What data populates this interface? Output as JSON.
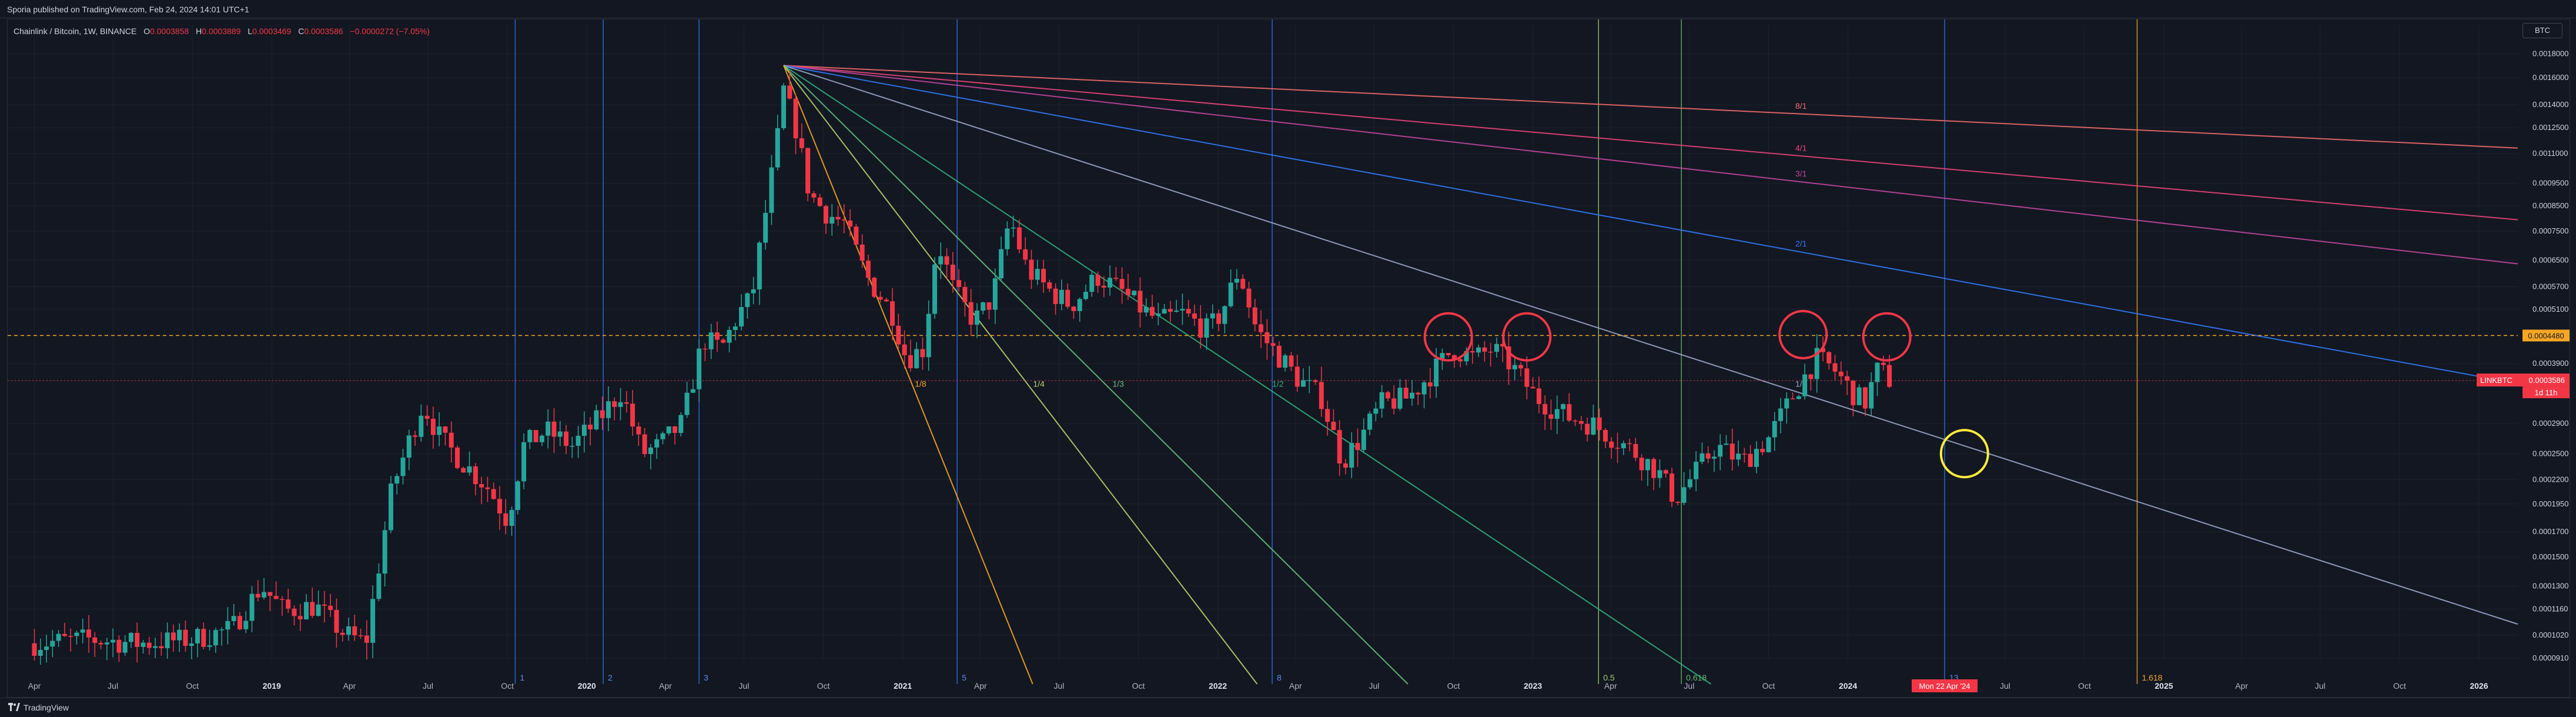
{
  "header": {
    "published": "Sporia published on TradingView.com, Feb 24, 2024 14:01 UTC+1"
  },
  "legend": {
    "symbol": "Chainlink / Bitcoin, 1W, BINANCE",
    "o_label": "O",
    "o_value": "0.0003858",
    "h_label": "H",
    "h_value": "0.0003889",
    "l_label": "L",
    "l_value": "0.0003469",
    "c_label": "C",
    "c_value": "0.0003586",
    "change": "−0.0000272 (−7.05%)"
  },
  "toolbar": {
    "currency": "BTC"
  },
  "footer": {
    "brand": "TradingView"
  },
  "colors": {
    "up": "#26a69a",
    "down": "#f23645",
    "grid": "#1e222d",
    "fan_blue": "#3179f5",
    "fan_pink": "#e94a8a",
    "hline_orange": "#f5a623",
    "circle_red": "#f23645",
    "circle_yellow": "#ffeb3b"
  },
  "chart_data": {
    "type": "candlestick",
    "scale": "log",
    "ylim": [
      9e-05,
      0.0019
    ],
    "x_range": [
      "2018-03-01",
      "2026-02-15"
    ],
    "price_axis": [
      "0.0018000",
      "0.0016000",
      "0.0014000",
      "0.0012500",
      "0.0011000",
      "0.0009500",
      "0.0008500",
      "0.0007500",
      "0.0006500",
      "0.0005700",
      "0.0005100",
      "0.0004480",
      "0.0003900",
      "0.0003586",
      "0.0002900",
      "0.0002500",
      "0.0002200",
      "0.0001950",
      "0.0001700",
      "0.0001500",
      "0.0001300",
      "0.0001160",
      "0.0001020",
      "0.0000910"
    ],
    "time_axis": [
      {
        "label": "Apr",
        "date": "2018-04-01"
      },
      {
        "label": "Jul",
        "date": "2018-07-01"
      },
      {
        "label": "Oct",
        "date": "2018-10-01"
      },
      {
        "label": "2019",
        "date": "2019-01-01"
      },
      {
        "label": "Apr",
        "date": "2019-04-01"
      },
      {
        "label": "Jul",
        "date": "2019-07-01"
      },
      {
        "label": "Oct",
        "date": "2019-10-01"
      },
      {
        "label": "2020",
        "date": "2020-01-01"
      },
      {
        "label": "Apr",
        "date": "2020-04-01"
      },
      {
        "label": "Jul",
        "date": "2020-07-01"
      },
      {
        "label": "Oct",
        "date": "2020-10-01"
      },
      {
        "label": "2021",
        "date": "2021-01-01"
      },
      {
        "label": "Apr",
        "date": "2021-04-01"
      },
      {
        "label": "Jul",
        "date": "2021-07-01"
      },
      {
        "label": "Oct",
        "date": "2021-10-01"
      },
      {
        "label": "2022",
        "date": "2022-01-01"
      },
      {
        "label": "Apr",
        "date": "2022-04-01"
      },
      {
        "label": "Jul",
        "date": "2022-07-01"
      },
      {
        "label": "Oct",
        "date": "2022-10-01"
      },
      {
        "label": "2023",
        "date": "2023-01-01"
      },
      {
        "label": "Apr",
        "date": "2023-04-01"
      },
      {
        "label": "Jul",
        "date": "2023-07-01"
      },
      {
        "label": "Oct",
        "date": "2023-10-01"
      },
      {
        "label": "2024",
        "date": "2024-01-01"
      },
      {
        "label": "Jul",
        "date": "2024-07-01"
      },
      {
        "label": "Oct",
        "date": "2024-10-01"
      },
      {
        "label": "2025",
        "date": "2025-01-01"
      },
      {
        "label": "Apr",
        "date": "2025-04-01"
      },
      {
        "label": "Jul",
        "date": "2025-07-01"
      },
      {
        "label": "Oct",
        "date": "2025-10-01"
      },
      {
        "label": "2026",
        "date": "2026-01-01"
      }
    ],
    "highlight_date_label": "Mon 22 Apr '24",
    "current_price": {
      "symbol": "LINKBTC",
      "value": "0.0003586",
      "countdown": "1d 11h"
    },
    "horizontal_level": {
      "value": "0.0004480"
    },
    "price_path": [
      [
        "2018-04-01",
        9.8e-05
      ],
      [
        "2018-06-01",
        0.0001
      ],
      [
        "2018-08-01",
        9.8e-05
      ],
      [
        "2018-10-01",
        0.0001
      ],
      [
        "2018-11-15",
        0.000105
      ],
      [
        "2018-12-20",
        0.00013
      ],
      [
        "2019-01-15",
        0.000115
      ],
      [
        "2019-02-20",
        0.000118
      ],
      [
        "2019-03-25",
        0.000103
      ],
      [
        "2019-04-20",
        9.8e-05
      ],
      [
        "2019-05-20",
        0.00021
      ],
      [
        "2019-06-25",
        0.00032
      ],
      [
        "2019-07-15",
        0.00027
      ],
      [
        "2019-08-10",
        0.00024
      ],
      [
        "2019-09-10",
        0.00021
      ],
      [
        "2019-10-01",
        0.00018
      ],
      [
        "2019-10-20",
        0.00026
      ],
      [
        "2019-11-15",
        0.00028
      ],
      [
        "2019-12-15",
        0.00026
      ],
      [
        "2020-01-10",
        0.00029
      ],
      [
        "2020-02-10",
        0.00034
      ],
      [
        "2020-03-05",
        0.00025
      ],
      [
        "2020-03-25",
        0.00026
      ],
      [
        "2020-04-20",
        0.00029
      ],
      [
        "2020-05-15",
        0.00044
      ],
      [
        "2020-06-05",
        0.00042
      ],
      [
        "2020-06-25",
        0.0005
      ],
      [
        "2020-07-10",
        0.00054
      ],
      [
        "2020-07-25",
        0.0008
      ],
      [
        "2020-08-08",
        0.00115
      ],
      [
        "2020-08-16",
        0.0015
      ],
      [
        "2020-08-30",
        0.00125
      ],
      [
        "2020-09-15",
        0.0009
      ],
      [
        "2020-10-05",
        0.00082
      ],
      [
        "2020-10-25",
        0.00078
      ],
      [
        "2020-11-20",
        0.0006
      ],
      [
        "2020-12-20",
        0.0005
      ],
      [
        "2021-01-05",
        0.0004
      ],
      [
        "2021-01-25",
        0.00042
      ],
      [
        "2021-02-10",
        0.00072
      ],
      [
        "2021-03-01",
        0.00056
      ],
      [
        "2021-03-25",
        0.00048
      ],
      [
        "2021-04-15",
        0.00054
      ],
      [
        "2021-05-05",
        0.0008
      ],
      [
        "2021-05-25",
        0.00062
      ],
      [
        "2021-06-20",
        0.00056
      ],
      [
        "2021-07-15",
        0.00052
      ],
      [
        "2021-08-15",
        0.0006
      ],
      [
        "2021-09-10",
        0.00056
      ],
      [
        "2021-10-05",
        0.00051
      ],
      [
        "2021-10-25",
        0.00048
      ],
      [
        "2021-11-20",
        0.0005
      ],
      [
        "2021-12-20",
        0.00046
      ],
      [
        "2022-01-05",
        0.0005
      ],
      [
        "2022-01-25",
        0.00062
      ],
      [
        "2022-02-15",
        0.00046
      ],
      [
        "2022-03-15",
        0.0004
      ],
      [
        "2022-04-05",
        0.00036
      ],
      [
        "2022-05-01",
        0.00033
      ],
      [
        "2022-05-25",
        0.00024
      ],
      [
        "2022-06-15",
        0.00027
      ],
      [
        "2022-07-10",
        0.00032
      ],
      [
        "2022-08-10",
        0.00033
      ],
      [
        "2022-09-10",
        0.00038
      ],
      [
        "2022-10-01",
        0.00042
      ],
      [
        "2022-10-25",
        0.0004
      ],
      [
        "2022-11-15",
        0.00042
      ],
      [
        "2022-12-05",
        0.00039
      ],
      [
        "2023-01-05",
        0.00033
      ],
      [
        "2023-02-10",
        0.0003
      ],
      [
        "2023-03-10",
        0.00029
      ],
      [
        "2023-04-05",
        0.00027
      ],
      [
        "2023-05-01",
        0.00025
      ],
      [
        "2023-05-25",
        0.00023
      ],
      [
        "2023-06-15",
        0.0002
      ],
      [
        "2023-07-10",
        0.00023
      ],
      [
        "2023-08-01",
        0.00026
      ],
      [
        "2023-09-01",
        0.00024
      ],
      [
        "2023-10-01",
        0.00027
      ],
      [
        "2023-11-01",
        0.00034
      ],
      [
        "2023-11-25",
        0.0004
      ],
      [
        "2023-12-15",
        0.00038
      ],
      [
        "2024-01-05",
        0.00034
      ],
      [
        "2024-01-20",
        0.00032
      ],
      [
        "2024-02-05",
        0.00038
      ],
      [
        "2024-02-19",
        0.000359
      ]
    ],
    "fan_origin": {
      "date": "2020-08-16",
      "price": 0.0017
    },
    "fan_lines": [
      {
        "label": "8/1",
        "price": 0.00134,
        "date": "2023-11-01"
      },
      {
        "label": "4/1",
        "price": 0.00109,
        "date": "2023-11-01"
      },
      {
        "label": "3/1",
        "price": 0.00096,
        "date": "2023-11-01"
      },
      {
        "label": "2/1",
        "price": 0.00068,
        "date": "2023-11-01"
      },
      {
        "label": "1/1",
        "price": 0.00034,
        "date": "2023-11-01"
      },
      {
        "label": "1/2",
        "price": 0.00034,
        "date": "2022-03-05"
      },
      {
        "label": "1/3",
        "price": 0.00034,
        "date": "2021-09-01"
      },
      {
        "label": "1/4",
        "price": 0.00034,
        "date": "2021-06-01"
      },
      {
        "label": "1/8",
        "price": 0.00034,
        "date": "2021-01-15"
      }
    ],
    "fib_time_lines": [
      {
        "label": "1",
        "date": "2019-10-10"
      },
      {
        "label": "2",
        "date": "2020-01-20"
      },
      {
        "label": "3",
        "date": "2020-05-10"
      },
      {
        "label": "5",
        "date": "2021-03-05"
      },
      {
        "label": "8",
        "date": "2022-03-05"
      },
      {
        "label": "13",
        "date": "2024-04-22"
      }
    ],
    "fib_time_extra": [
      {
        "label": "0.5",
        "date": "2023-03-18"
      },
      {
        "label": "0.618",
        "date": "2023-06-22"
      },
      {
        "label": "1.618",
        "date": "2024-12-01"
      }
    ],
    "resistance_circles": [
      {
        "date": "2022-09-25",
        "price": 0.000445
      },
      {
        "date": "2022-12-25",
        "price": 0.000445
      },
      {
        "date": "2023-11-10",
        "price": 0.00045
      },
      {
        "date": "2024-02-15",
        "price": 0.000445
      }
    ],
    "target_circle": {
      "date": "2024-05-15",
      "price": 0.00025
    }
  }
}
